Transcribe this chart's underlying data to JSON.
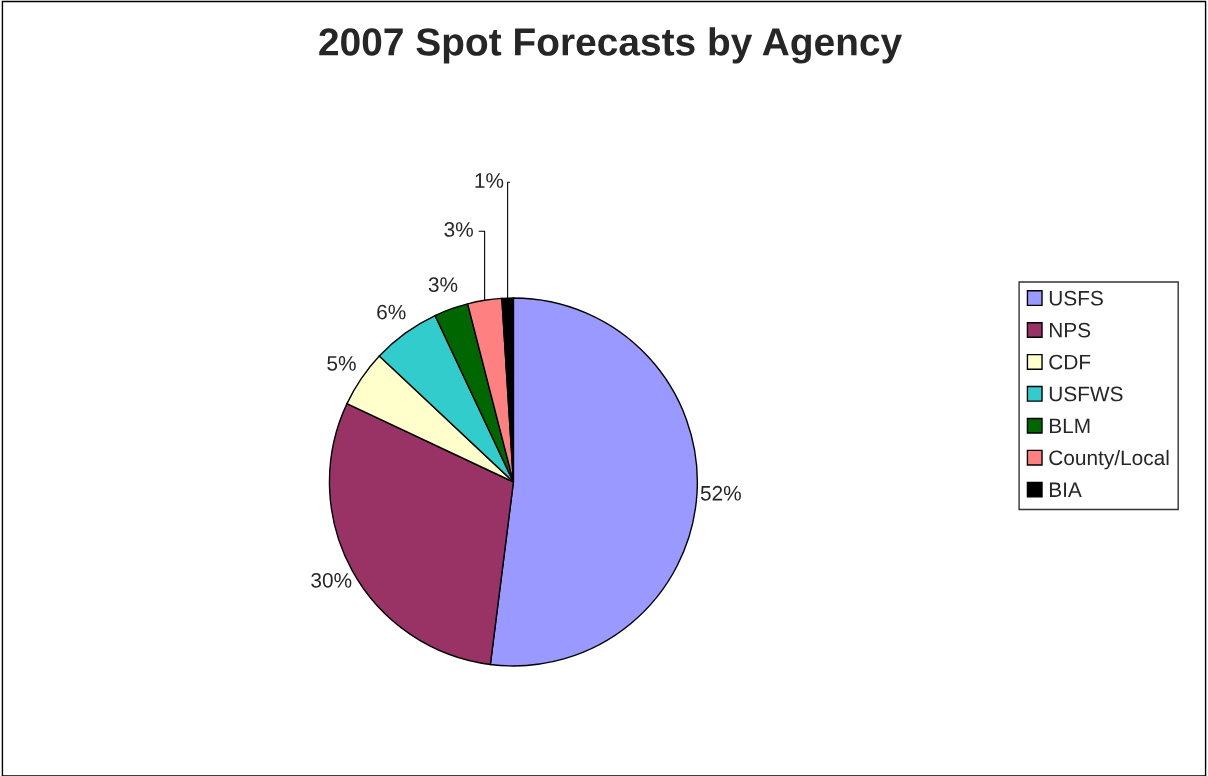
{
  "chart_data": {
    "type": "pie",
    "title": "2007 Spot Forecasts by Agency",
    "categories": [
      "USFS",
      "NPS",
      "CDF",
      "USFWS",
      "BLM",
      "County/Local",
      "BIA"
    ],
    "values": [
      52,
      30,
      5,
      6,
      3,
      3,
      1
    ],
    "value_labels": [
      "52%",
      "30%",
      "5%",
      "6%",
      "3%",
      "3%",
      "1%"
    ],
    "colors": [
      "#9999ff",
      "#993366",
      "#ffffcc",
      "#33cccc",
      "#006600",
      "#ff8080",
      "#000000"
    ],
    "legend": "right"
  }
}
